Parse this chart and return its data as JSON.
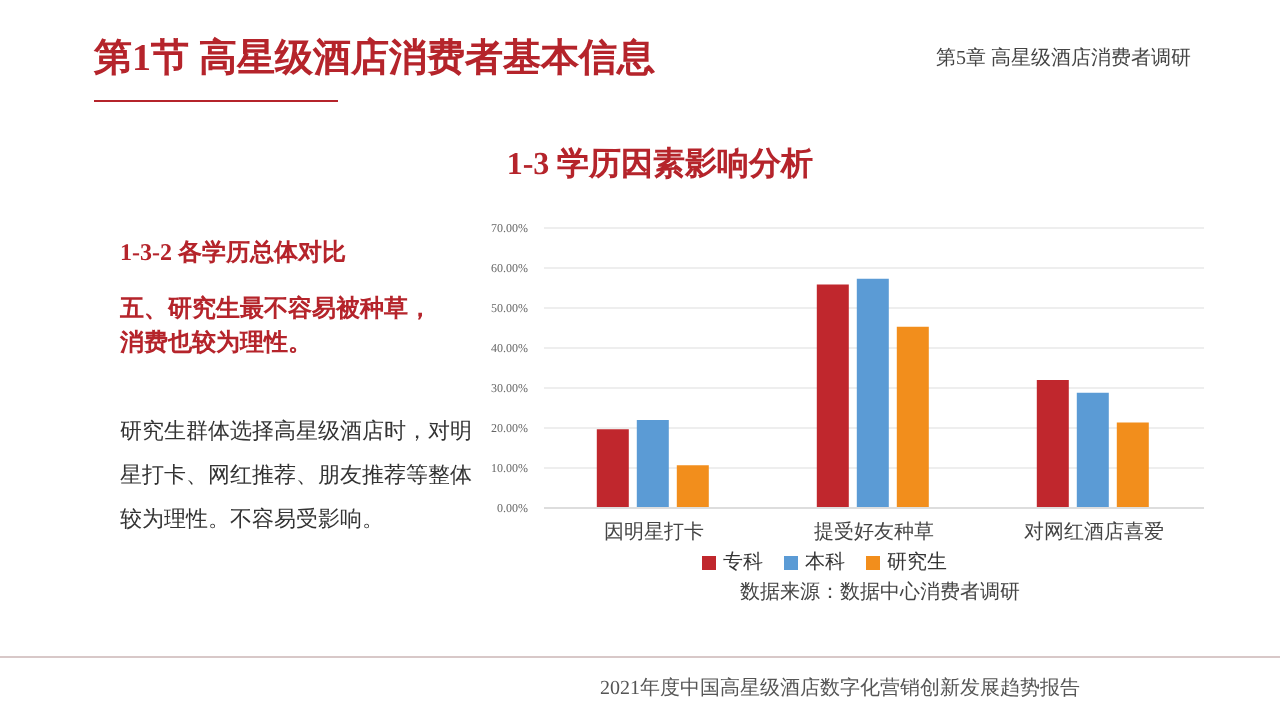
{
  "chart_data": {
    "type": "bar",
    "title": "1-3 学历因素影响分析",
    "categories": [
      "因明星打卡",
      "提受好友种草",
      "对网红酒店喜爱"
    ],
    "series": [
      {
        "name": "专科",
        "color": "#c0272d",
        "values": [
          19.7,
          55.9,
          32.0
        ]
      },
      {
        "name": "本科",
        "color": "#5b9bd5",
        "values": [
          22.0,
          57.3,
          28.8
        ]
      },
      {
        "name": "研究生",
        "color": "#f28e1c",
        "values": [
          10.7,
          45.3,
          21.4
        ]
      }
    ],
    "ylim": [
      0,
      70
    ],
    "yticks": [
      {
        "value": 0,
        "label": "0.00%"
      },
      {
        "value": 10,
        "label": "10.00%"
      },
      {
        "value": 20,
        "label": "20.00%"
      },
      {
        "value": 30,
        "label": "30.00%"
      },
      {
        "value": 40,
        "label": "40.00%"
      },
      {
        "value": 50,
        "label": "50.00%"
      },
      {
        "value": 60,
        "label": "60.00%"
      },
      {
        "value": 70,
        "label": "70.00%"
      }
    ],
    "grid": "y",
    "legend": "bottom",
    "annotations": [
      "第1节 高星级酒店消费者基本信息",
      "第5章 高星级酒店消费者调研",
      "1-3-2 各学历总体对比",
      "五、研究生最不容易被种草，消费也较为理性。",
      "研究生群体选择高星级酒店时，对明星打卡、网红推荐、朋友推荐等整体较为理性。不容易受影响。",
      "数据来源：数据中心消费者调研",
      "2021年度中国高星级酒店数字化营销创新发展趋势报告"
    ]
  }
}
